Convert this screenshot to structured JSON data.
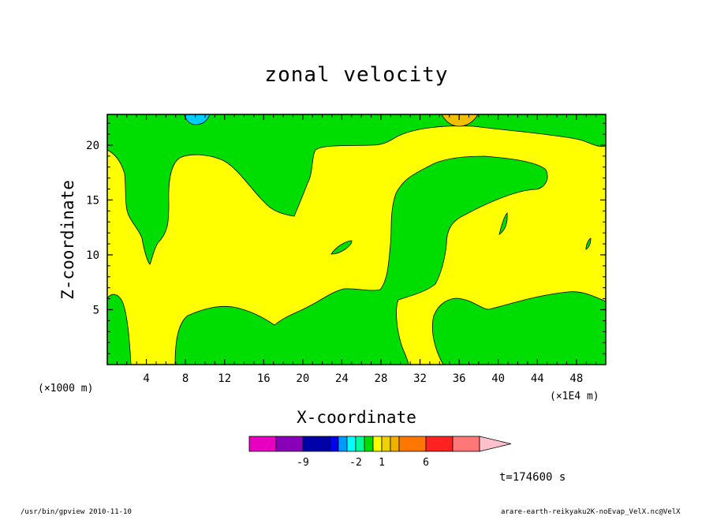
{
  "chart_data": {
    "type": "contour",
    "title": "zonal velocity",
    "xlabel": "X-coordinate",
    "ylabel": "Z-coordinate",
    "x_unit": "(×1E4 m)",
    "y_unit": "(×1000 m)",
    "x_ticks": [
      "4",
      "8",
      "12",
      "16",
      "20",
      "24",
      "28",
      "32",
      "36",
      "40",
      "44",
      "48"
    ],
    "y_ticks": [
      "5",
      "10",
      "15",
      "20"
    ],
    "xlim": [
      0,
      51
    ],
    "ylim": [
      0,
      22.8
    ],
    "fill_colors": {
      "yellow": "#ffff00",
      "green": "#00dd00",
      "cyan": "#00ccff",
      "orange": "#f0c000"
    },
    "colorbar": {
      "colors": [
        "#e800c0",
        "#8800b8",
        "#0000a8",
        "#0000ee",
        "#0099ff",
        "#00ffff",
        "#00ff99",
        "#00dd00",
        "#ffff00",
        "#f0d000",
        "#f0b000",
        "#ff7700",
        "#ff2222",
        "#ff7777"
      ],
      "arrow_color": "#ffc0cc",
      "tick_labels": [
        {
          "label": "-9",
          "index": 1
        },
        {
          "label": "-2",
          "index": 5
        },
        {
          "label": "1",
          "index": 8
        },
        {
          "label": "6",
          "index": 11
        }
      ]
    },
    "time_label": "t=174600 s"
  },
  "footer": {
    "left": "/usr/bin/gpview 2010-11-10",
    "right": "arare-earth-reikyaku2K-noEvap_VelX.nc@VelX"
  }
}
